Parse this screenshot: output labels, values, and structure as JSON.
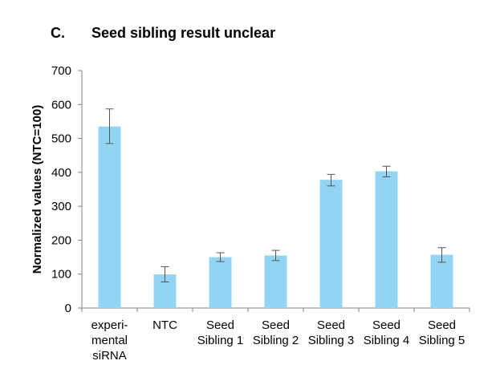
{
  "panel_label": "C.",
  "chart_data": {
    "type": "bar",
    "title": "Seed sibling result unclear",
    "xlabel": "",
    "ylabel": "Normalized values (NTC=100)",
    "ylim": [
      0,
      700
    ],
    "yticks": [
      0,
      100,
      200,
      300,
      400,
      500,
      600,
      700
    ],
    "grid": false,
    "bar_color": "#93d4f3",
    "categories": [
      [
        "experi-",
        "mental",
        "siRNA"
      ],
      [
        "NTC"
      ],
      [
        "Seed",
        "Sibling 1"
      ],
      [
        "Seed",
        "Sibling 2"
      ],
      [
        "Seed",
        "Sibling 3"
      ],
      [
        "Seed",
        "Sibling 4"
      ],
      [
        "Seed",
        "Sibling 5"
      ]
    ],
    "values": [
      535,
      99,
      150,
      155,
      378,
      403,
      157
    ],
    "error_low": [
      485,
      77,
      137,
      140,
      360,
      387,
      135
    ],
    "error_high": [
      587,
      122,
      163,
      170,
      394,
      418,
      178
    ]
  }
}
